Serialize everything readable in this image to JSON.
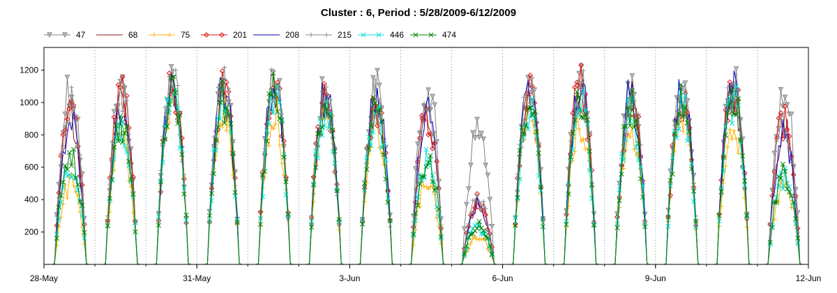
{
  "chart_data": {
    "type": "line",
    "title": "Cluster : 6, Period : 5/28/2009-6/12/2009",
    "xlabel": "",
    "ylabel": "",
    "x_range": [
      "2009-05-28",
      "2009-06-12"
    ],
    "ylim": [
      0,
      1340
    ],
    "x_ticks": [
      "28-May",
      "31-May",
      "3-Jun",
      "6-Jun",
      "9-Jun",
      "12-Jun"
    ],
    "y_ticks": [
      200,
      400,
      600,
      800,
      1000,
      1200
    ],
    "grid": "vertical dotted at midnight of each day",
    "legend_position": "top",
    "sampling": "hourly",
    "days": [
      "5/28",
      "5/29",
      "5/30",
      "5/31",
      "6/1",
      "6/2",
      "6/3",
      "6/4",
      "6/5",
      "6/6",
      "6/7",
      "6/8",
      "6/9",
      "6/10",
      "6/11"
    ],
    "daily_peak_by_series": {
      "47": [
        1260,
        1250,
        1300,
        1270,
        1290,
        1200,
        1230,
        1270,
        950,
        1260,
        1300,
        1260,
        1280,
        1270,
        1220
      ],
      "68": [
        1050,
        1120,
        1230,
        1200,
        1230,
        1150,
        1120,
        1000,
        420,
        1170,
        1220,
        1180,
        1170,
        1220,
        960
      ],
      "75": [
        560,
        880,
        1180,
        1080,
        1070,
        1070,
        1000,
        600,
        200,
        1080,
        1000,
        980,
        1080,
        1000,
        550
      ],
      "201": [
        1100,
        1180,
        1240,
        1210,
        1250,
        1180,
        1140,
        1050,
        440,
        1180,
        1260,
        1190,
        1200,
        1240,
        1030
      ],
      "208": [
        1000,
        1100,
        1250,
        1240,
        1280,
        1180,
        1180,
        1120,
        420,
        1270,
        1270,
        1200,
        1200,
        1260,
        900
      ],
      "215": [
        1150,
        1200,
        1260,
        1240,
        1260,
        1190,
        1170,
        1080,
        460,
        1220,
        1250,
        1200,
        1210,
        1240,
        1000
      ],
      "446": [
        720,
        980,
        1200,
        1120,
        1180,
        1100,
        1050,
        720,
        260,
        1100,
        1150,
        1080,
        1100,
        1150,
        600
      ],
      "474": [
        800,
        1000,
        1200,
        1150,
        1200,
        1120,
        1080,
        750,
        280,
        1120,
        1180,
        1100,
        1120,
        1180,
        650
      ]
    },
    "series": [
      {
        "name": "47",
        "color": "#808080",
        "marker": "triangle-down"
      },
      {
        "name": "68",
        "color": "#8b1a1a",
        "marker": "none"
      },
      {
        "name": "75",
        "color": "#ffb000",
        "marker": "plus"
      },
      {
        "name": "201",
        "color": "#e01010",
        "marker": "diamond"
      },
      {
        "name": "208",
        "color": "#0000c0",
        "marker": "none"
      },
      {
        "name": "215",
        "color": "#888888",
        "marker": "plus"
      },
      {
        "name": "446",
        "color": "#00e0e0",
        "marker": "x"
      },
      {
        "name": "474",
        "color": "#008000",
        "marker": "x"
      }
    ]
  }
}
